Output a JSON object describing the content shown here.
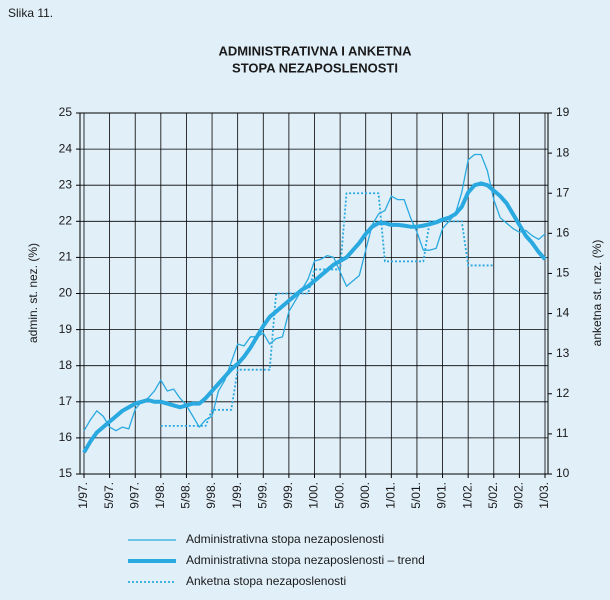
{
  "chart_data": {
    "type": "line",
    "label": "Slika 11.",
    "title": "ADMINISTRATIVNA I ANKETNA",
    "subtitle": "STOPA NEZAPOSLENOSTI",
    "ylabel": "admin. st. nez. (%)",
    "y2label": "anketna st. nez. (%)",
    "categories": [
      "1/97.",
      null,
      null,
      null,
      "5/97.",
      null,
      null,
      null,
      "9/97.",
      null,
      null,
      null,
      "1/98.",
      null,
      null,
      null,
      "5/98.",
      null,
      null,
      null,
      "9/98.",
      null,
      null,
      null,
      "1/99.",
      null,
      null,
      null,
      "5/99.",
      null,
      null,
      null,
      "9/99.",
      null,
      null,
      null,
      "1/00.",
      null,
      null,
      null,
      "5/00.",
      null,
      null,
      null,
      "9/00.",
      null,
      null,
      null,
      "1/01.",
      null,
      null,
      null,
      "5/01.",
      null,
      null,
      null,
      "9/01.",
      null,
      null,
      null,
      "1/02.",
      null,
      null,
      null,
      "5/02.",
      null,
      null,
      null,
      "9/02.",
      null,
      null,
      null,
      "1/03."
    ],
    "series": [
      {
        "name": "Administrativna stopa nezaposlenosti",
        "color": "#29a9df",
        "style": "thin",
        "values": [
          16.2,
          16.5,
          16.75,
          16.6,
          16.3,
          16.2,
          16.3,
          16.25,
          16.8,
          17.0,
          17.1,
          17.3,
          17.6,
          17.3,
          17.35,
          17.1,
          16.9,
          16.6,
          16.3,
          16.5,
          16.6,
          17.3,
          17.6,
          18.1,
          18.6,
          18.55,
          18.8,
          18.8,
          18.9,
          18.6,
          18.75,
          18.8,
          19.5,
          19.8,
          20.1,
          20.4,
          20.9,
          20.95,
          21.05,
          21.0,
          20.6,
          20.2,
          20.35,
          20.5,
          21.2,
          21.9,
          22.2,
          22.3,
          22.7,
          22.6,
          22.6,
          22.1,
          21.7,
          21.2,
          21.2,
          21.25,
          21.8,
          22.0,
          22.2,
          22.8,
          23.7,
          23.85,
          23.85,
          23.4,
          22.6,
          22.1,
          21.95,
          21.8,
          21.7,
          21.75,
          21.6,
          21.5,
          21.65
        ]
      },
      {
        "name": "Administrativna stopa nezaposlenosti – trend",
        "color": "#29a9df",
        "style": "thick",
        "values": [
          15.6,
          15.9,
          16.15,
          16.3,
          16.45,
          16.6,
          16.75,
          16.85,
          16.95,
          17.0,
          17.05,
          17.0,
          17.0,
          16.95,
          16.9,
          16.85,
          16.9,
          16.95,
          16.95,
          17.1,
          17.3,
          17.5,
          17.7,
          17.9,
          18.05,
          18.25,
          18.5,
          18.8,
          19.1,
          19.35,
          19.5,
          19.65,
          19.8,
          19.95,
          20.1,
          20.2,
          20.35,
          20.5,
          20.65,
          20.8,
          20.9,
          21.0,
          21.2,
          21.4,
          21.65,
          21.85,
          21.95,
          21.95,
          21.9,
          21.9,
          21.88,
          21.85,
          21.85,
          21.88,
          21.92,
          21.97,
          22.05,
          22.1,
          22.2,
          22.4,
          22.8,
          23.0,
          23.05,
          23.0,
          22.85,
          22.7,
          22.5,
          22.2,
          21.9,
          21.6,
          21.4,
          21.15,
          20.95
        ]
      },
      {
        "name": "Anketna stopa nezaposlenosti",
        "color": "#29a9df",
        "style": "dotted",
        "axis": "y2",
        "values": [
          null,
          null,
          null,
          null,
          null,
          null,
          null,
          null,
          null,
          null,
          null,
          null,
          11.2,
          11.2,
          11.2,
          11.2,
          11.2,
          11.2,
          11.2,
          11.2,
          11.6,
          11.6,
          11.6,
          11.6,
          12.6,
          12.6,
          12.6,
          12.6,
          12.6,
          12.6,
          14.5,
          14.5,
          14.5,
          14.5,
          14.5,
          14.5,
          15.1,
          15.1,
          15.1,
          15.1,
          15.1,
          17.0,
          17.0,
          17.0,
          17.0,
          17.0,
          17.0,
          15.3,
          15.3,
          15.3,
          15.3,
          15.3,
          15.3,
          15.3,
          16.3,
          16.3,
          16.3,
          16.3,
          16.3,
          16.3,
          15.2,
          15.2,
          15.2,
          15.2,
          15.2,
          null,
          null,
          null,
          null,
          null,
          null,
          null,
          null
        ]
      }
    ],
    "ylim": [
      15,
      25
    ],
    "yticks": [
      15,
      16,
      17,
      18,
      19,
      20,
      21,
      22,
      23,
      24,
      25
    ],
    "y2lim": [
      10,
      19
    ],
    "y2ticks": [
      10,
      11,
      12,
      13,
      14,
      15,
      16,
      17,
      18,
      19
    ],
    "grid": true
  }
}
